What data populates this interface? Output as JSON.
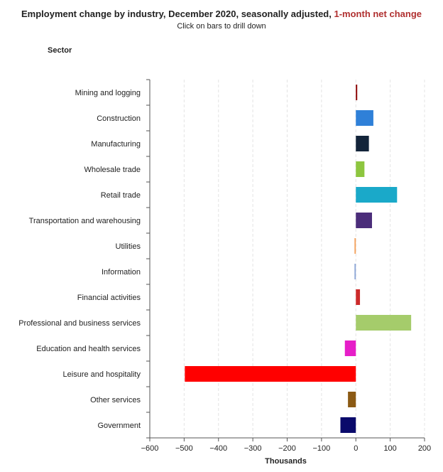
{
  "title_main": "Employment change by industry, December 2020, seasonally adjusted,",
  "title_highlight": "1-month net change",
  "subtitle": "Click on bars to drill down",
  "axis_header": "Sector",
  "chart_data": {
    "type": "bar",
    "orientation": "horizontal",
    "categories": [
      "Mining and logging",
      "Construction",
      "Manufacturing",
      "Wholesale trade",
      "Retail trade",
      "Transportation and warehousing",
      "Utilities",
      "Information",
      "Financial activities",
      "Professional and business services",
      "Education and health services",
      "Leisure and hospitality",
      "Other services",
      "Government"
    ],
    "values": [
      4,
      51,
      38,
      25,
      120,
      47,
      -4,
      -4,
      12,
      161,
      -32,
      -498,
      -23,
      -45
    ],
    "colors": [
      "#8b0000",
      "#2f80d8",
      "#13243a",
      "#8dc63f",
      "#1aa9c9",
      "#4b2d7a",
      "#f4a460",
      "#8fa8d8",
      "#cc2a2a",
      "#a5cc6b",
      "#e61ec8",
      "#ff0000",
      "#8b5a14",
      "#0a0a6b"
    ],
    "xlabel": "Thousands",
    "ylabel": "Sector",
    "xlim": [
      -600,
      200
    ],
    "xticks": [
      -600,
      -500,
      -400,
      -300,
      -200,
      -100,
      0,
      100,
      200
    ],
    "xtick_labels": [
      "−600",
      "−500",
      "−400",
      "−300",
      "−200",
      "−100",
      "0",
      "100",
      "200"
    ],
    "grid": true
  }
}
